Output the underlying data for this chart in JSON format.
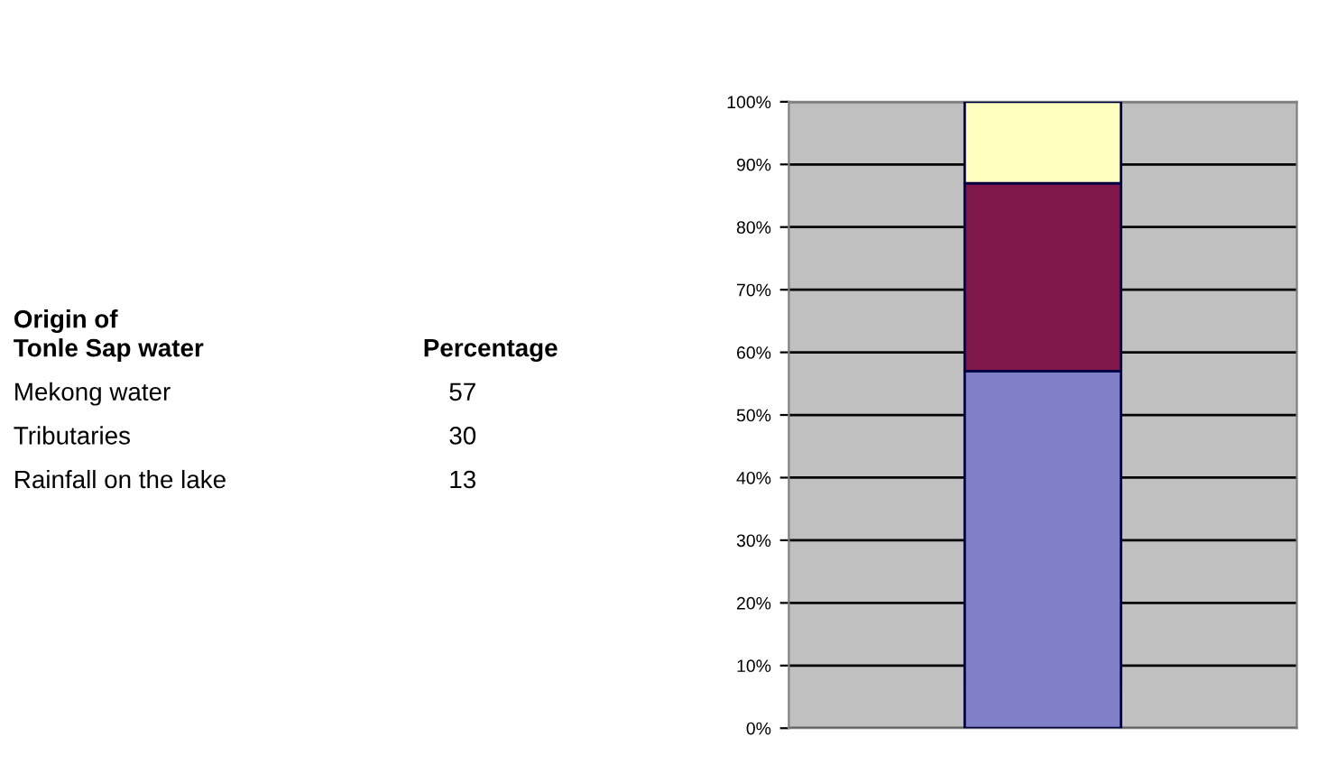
{
  "chart_data": [
    {
      "type": "other",
      "annotations": [
        "Origin of\nTonle Sap water",
        "Percentage"
      ],
      "categories": [
        "Mekong water",
        "Tributaries",
        "Rainfall on the lake"
      ],
      "values": [
        57,
        30,
        13
      ],
      "data_labels": true
    },
    {
      "type": "bar",
      "stacked": true,
      "categories": [
        null
      ],
      "series": [
        {
          "color": "#8080c8",
          "values": [
            57
          ]
        },
        {
          "color": "#80174a",
          "values": [
            30
          ]
        },
        {
          "color": "#ffffc0",
          "values": [
            13
          ]
        }
      ],
      "ylim": [
        0,
        100
      ],
      "yticks": [
        {
          "value": 0,
          "label": "0%"
        },
        {
          "value": 10,
          "label": "10%"
        },
        {
          "value": 20,
          "label": "20%"
        },
        {
          "value": 30,
          "label": "30%"
        },
        {
          "value": 40,
          "label": "40%"
        },
        {
          "value": 50,
          "label": "50%"
        },
        {
          "value": 60,
          "label": "60%"
        },
        {
          "value": 70,
          "label": "70%"
        },
        {
          "value": 80,
          "label": "80%"
        },
        {
          "value": 90,
          "label": "90%"
        },
        {
          "value": 100,
          "label": "100%"
        }
      ],
      "grid": "y"
    }
  ]
}
